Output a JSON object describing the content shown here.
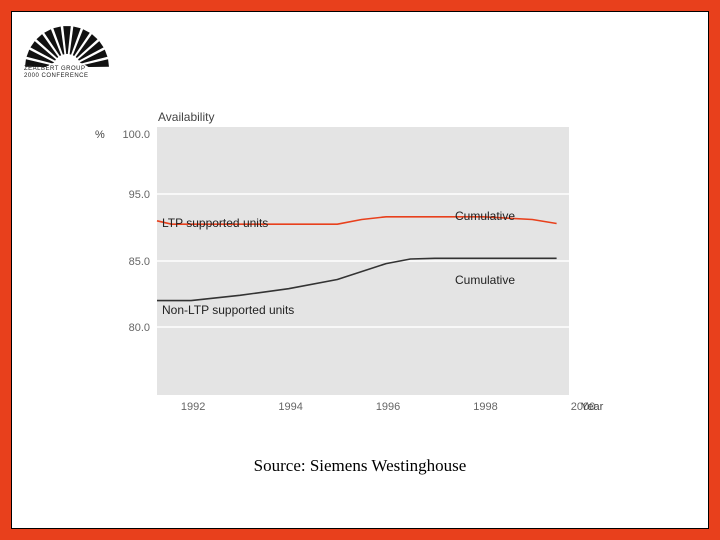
{
  "logo": {
    "line1": "ZEALBERT GROUP",
    "line2": "2000 CONFERENCE"
  },
  "source": "Source: Siemens Westinghouse",
  "chart_data": {
    "type": "line",
    "title": "Availability",
    "ylabel": "%",
    "xlabel": "Year",
    "ylim": [
      70,
      100
    ],
    "xlim": [
      1991.3,
      2000
    ],
    "ytick_labels": [
      "100.0",
      "95.0",
      "85.0",
      "80.0"
    ],
    "xtick_labels": [
      "1992",
      "1994",
      "1996",
      "1998",
      "2000"
    ],
    "grid": true,
    "series": [
      {
        "name": "LTP supported units",
        "end_label": "Cumulative",
        "color": "#e8401c",
        "points": [
          {
            "x": 1991.3,
            "y": 91.0
          },
          {
            "x": 1991.6,
            "y": 90.5
          },
          {
            "x": 1993.0,
            "y": 90.5
          },
          {
            "x": 1995.0,
            "y": 90.5
          },
          {
            "x": 1995.5,
            "y": 91.2
          },
          {
            "x": 1996.0,
            "y": 91.6
          },
          {
            "x": 1996.5,
            "y": 91.6
          },
          {
            "x": 1998.0,
            "y": 91.6
          },
          {
            "x": 1999.0,
            "y": 91.2
          },
          {
            "x": 1999.5,
            "y": 90.6
          }
        ]
      },
      {
        "name": "Non-LTP supported units",
        "end_label": "Cumulative",
        "color": "#333333",
        "points": [
          {
            "x": 1991.3,
            "y": 82.0
          },
          {
            "x": 1992.0,
            "y": 82.0
          },
          {
            "x": 1993.0,
            "y": 82.4
          },
          {
            "x": 1994.0,
            "y": 82.9
          },
          {
            "x": 1995.0,
            "y": 83.6
          },
          {
            "x": 1996.0,
            "y": 84.8
          },
          {
            "x": 1996.5,
            "y": 85.3
          },
          {
            "x": 1997.0,
            "y": 85.4
          },
          {
            "x": 1999.5,
            "y": 85.4
          }
        ]
      }
    ]
  }
}
